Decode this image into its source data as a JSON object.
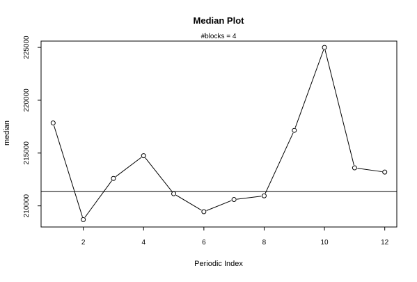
{
  "chart_data": {
    "type": "line",
    "title": "Median Plot",
    "subtitle": "#blocks =  4",
    "xlabel": "Periodic Index",
    "ylabel": "median",
    "x": [
      1,
      2,
      3,
      4,
      5,
      6,
      7,
      8,
      9,
      10,
      11,
      12
    ],
    "series": [
      {
        "values": [
          217850,
          208700,
          212600,
          214750,
          211150,
          209450,
          210600,
          210950,
          217150,
          225000,
          213600,
          213200
        ]
      }
    ],
    "reference_line": 211350,
    "xlim": [
      0.6,
      12.4
    ],
    "ylim": [
      208000,
      225600
    ],
    "xticks": [
      2,
      4,
      6,
      8,
      10,
      12
    ],
    "yticks": [
      210000,
      215000,
      220000,
      225000
    ],
    "xtick_labels": [
      "2",
      "4",
      "6",
      "8",
      "10",
      "12"
    ],
    "ytick_labels": [
      "210000",
      "215000",
      "220000",
      "225000"
    ],
    "grid": false,
    "legend": "none",
    "marker": "open-circle",
    "line_color": "#000000"
  }
}
